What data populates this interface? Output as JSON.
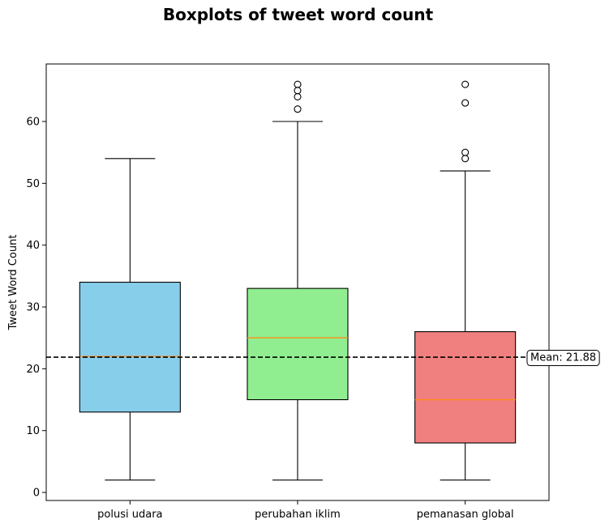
{
  "chart_data": {
    "type": "box",
    "title": "Boxplots of tweet word count",
    "ylabel": "Tweet Word Count",
    "xlabel": "",
    "ylim": [
      -1.3,
      69.3
    ],
    "yticks": [
      0,
      10,
      20,
      30,
      40,
      50,
      60
    ],
    "categories": [
      "polusi udara",
      "perubahan iklim",
      "pemanasan global"
    ],
    "boxes": [
      {
        "category": "polusi udara",
        "whislo": 2,
        "q1": 13,
        "median": 22,
        "q3": 34,
        "whishi": 54,
        "fliers": [],
        "color": "#87CEEB"
      },
      {
        "category": "perubahan iklim",
        "whislo": 2,
        "q1": 15,
        "median": 25,
        "q3": 33,
        "whishi": 60,
        "fliers": [
          62,
          64,
          65,
          66
        ],
        "color": "#90EE90"
      },
      {
        "category": "pemanasan global",
        "whislo": 2,
        "q1": 8,
        "median": 15,
        "q3": 26,
        "whishi": 52,
        "fliers": [
          54,
          55,
          63,
          66
        ],
        "color": "#F08080"
      }
    ],
    "mean_line": {
      "value": 21.88,
      "label": "Mean: 21.88",
      "style": "dashed",
      "color": "#000000"
    },
    "median_color": "#FF8C1A"
  }
}
